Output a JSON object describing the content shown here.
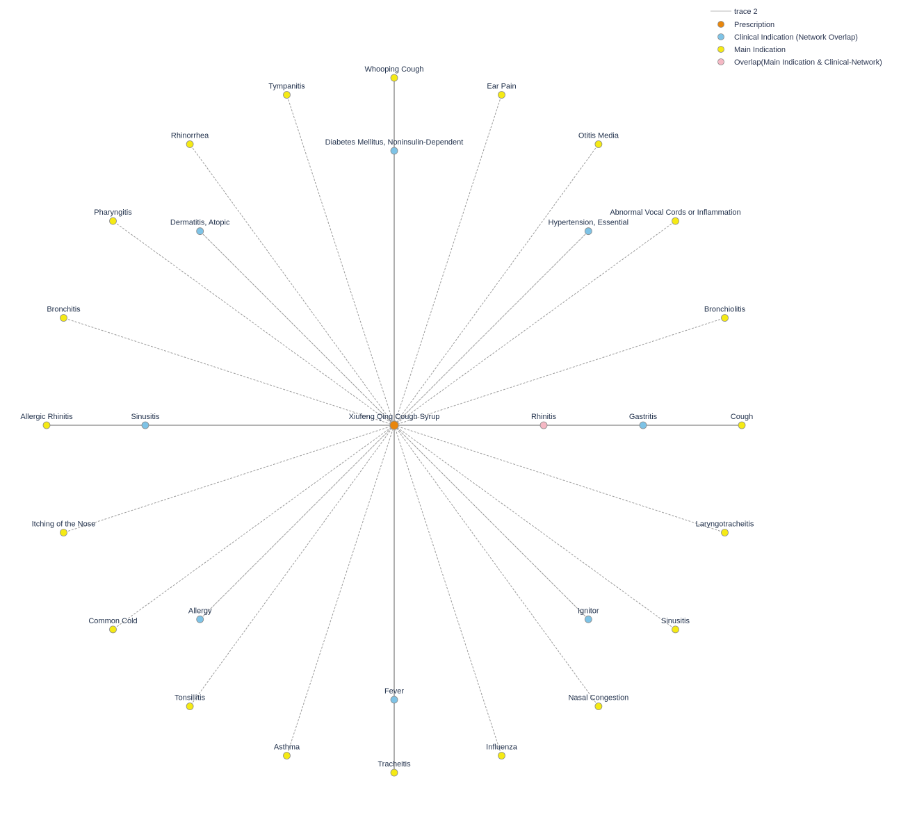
{
  "colors": {
    "prescription": "#e8860c",
    "clinical": "#7ec3e6",
    "main": "#f5ea14",
    "overlap": "#f5b8c4",
    "line": "#9a9a9a",
    "node_stroke": "#8a8a8a",
    "label": "#1f2f4a"
  },
  "legend": {
    "items": [
      {
        "type": "line",
        "label": "trace 2"
      },
      {
        "type": "prescription",
        "label": "Prescription"
      },
      {
        "type": "clinical",
        "label": "Clinical Indication (Network Overlap)"
      },
      {
        "type": "main",
        "label": "Main Indication"
      },
      {
        "type": "overlap",
        "label": "Overlap(Main Indication & Clinical-Network)"
      }
    ]
  },
  "center": {
    "label": "Xiufeng Qing Cough Syrup",
    "type": "prescription"
  },
  "nodes": [
    {
      "label": "Whooping Cough",
      "type": "main",
      "radius": 4,
      "angle": 90
    },
    {
      "label": "Tympanitis",
      "type": "main",
      "radius": 4,
      "angle": 108
    },
    {
      "label": "Rhinorrhea",
      "type": "main",
      "radius": 4,
      "angle": 126
    },
    {
      "label": "Pharyngitis",
      "type": "main",
      "radius": 4,
      "angle": 144
    },
    {
      "label": "Bronchitis",
      "type": "main",
      "radius": 4,
      "angle": 162
    },
    {
      "label": "Allergic Rhinitis",
      "type": "main",
      "radius": 4,
      "angle": 180
    },
    {
      "label": "Itching of the Nose",
      "type": "main",
      "radius": 4,
      "angle": 198
    },
    {
      "label": "Common Cold",
      "type": "main",
      "radius": 4,
      "angle": 216
    },
    {
      "label": "Tonsillitis",
      "type": "main",
      "radius": 4,
      "angle": 234
    },
    {
      "label": "Asthma",
      "type": "main",
      "radius": 4,
      "angle": 252
    },
    {
      "label": "Tracheitis",
      "type": "main",
      "radius": 4,
      "angle": 270
    },
    {
      "label": "Influenza",
      "type": "main",
      "radius": 4,
      "angle": 288
    },
    {
      "label": "Nasal Congestion",
      "type": "main",
      "radius": 4,
      "angle": 306
    },
    {
      "label": "Sinusitis",
      "type": "main",
      "radius": 4,
      "angle": 324
    },
    {
      "label": "Laryngotracheitis",
      "type": "main",
      "radius": 4,
      "angle": 342
    },
    {
      "label": "Cough",
      "type": "main",
      "radius": 4,
      "angle": 0
    },
    {
      "label": "Bronchiolitis",
      "type": "main",
      "radius": 4,
      "angle": 18
    },
    {
      "label": "Abnormal Vocal Cords or Inflammation",
      "type": "main",
      "radius": 4,
      "angle": 36
    },
    {
      "label": "Otitis Media",
      "type": "main",
      "radius": 4,
      "angle": 54
    },
    {
      "label": "Ear Pain",
      "type": "main",
      "radius": 4,
      "angle": 72
    },
    {
      "label": "Diabetes Mellitus, Noninsulin-Dependent",
      "type": "clinical",
      "radius": 3,
      "angle": 90
    },
    {
      "label": "Dermatitis, Atopic",
      "type": "clinical",
      "radius": 3,
      "angle": 135
    },
    {
      "label": "Sinusitis",
      "type": "clinical",
      "radius": 3,
      "angle": 180
    },
    {
      "label": "Allergy",
      "type": "clinical",
      "radius": 3,
      "angle": 225
    },
    {
      "label": "Fever",
      "type": "clinical",
      "radius": 3,
      "angle": 270
    },
    {
      "label": "Ignitor",
      "type": "clinical",
      "radius": 3,
      "angle": 315
    },
    {
      "label": "Gastritis",
      "type": "clinical",
      "radius": 3,
      "angle": 0
    },
    {
      "label": "Hypertension, Essential",
      "type": "clinical",
      "radius": 3,
      "angle": 45
    },
    {
      "label": "Rhinitis",
      "type": "overlap",
      "radius": 2,
      "angle": 0
    }
  ]
}
